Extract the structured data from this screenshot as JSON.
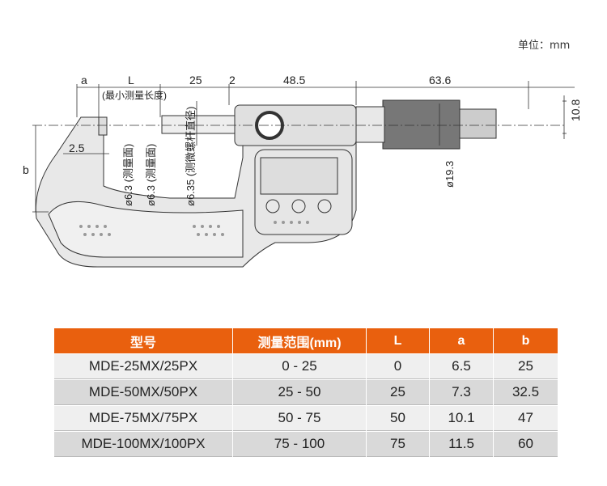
{
  "unit_label": "单位：mm",
  "drawing": {
    "dim_a": "a",
    "dim_L": "L",
    "dim_L_note": "(最小测量长度)",
    "dim_25": "25",
    "dim_2": "2",
    "dim_48_5": "48.5",
    "dim_63_6": "63.6",
    "dim_10_8": "10.8",
    "dim_2_5": "2.5",
    "dim_b": "b",
    "anvil_dia": "ø6.3 (测量面)",
    "spindle_face_dia": "ø6.3 (测量面)",
    "spindle_dia": "ø6.35 (测微螺杆直径)",
    "thimble_dia": "ø19.3"
  },
  "table": {
    "header_color": "#e9600e",
    "headers": [
      "型号",
      "测量范围(mm)",
      "L",
      "a",
      "b"
    ],
    "rows": [
      [
        "MDE-25MX/25PX",
        "0 - 25",
        "0",
        "6.5",
        "25"
      ],
      [
        "MDE-50MX/50PX",
        "25 - 50",
        "25",
        "7.3",
        "32.5"
      ],
      [
        "MDE-75MX/75PX",
        "50 - 75",
        "50",
        "10.1",
        "47"
      ],
      [
        "MDE-100MX/100PX",
        "75 - 100",
        "75",
        "11.5",
        "60"
      ]
    ]
  }
}
